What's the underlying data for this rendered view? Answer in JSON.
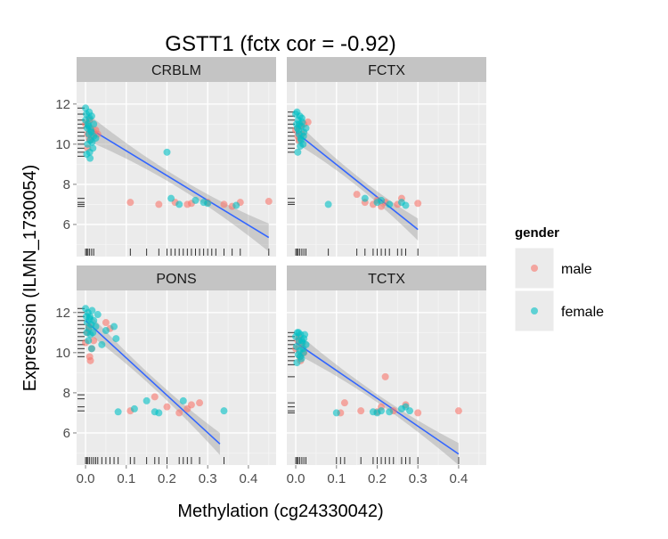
{
  "chart_data": {
    "type": "scatter",
    "title": "GSTT1 (fctx cor = -0.92)",
    "xlabel": "Methylation (cg24330042)",
    "ylabel": "Expression (ILMN_1730054)",
    "xticks": [
      0.0,
      0.1,
      0.2,
      0.3,
      0.4
    ],
    "xtick_labels": [
      "0.0",
      "0.1",
      "0.2",
      "0.3",
      "0.4"
    ],
    "yticks": [
      6,
      8,
      10,
      12
    ],
    "ytick_labels": [
      "6",
      "8",
      "10",
      "12"
    ],
    "xlim": [
      -0.022,
      0.468
    ],
    "ylim": [
      4.4,
      13.1
    ],
    "grid": true,
    "legend": {
      "title": "gender",
      "position": "right",
      "entries": [
        {
          "label": "male",
          "color": "#F8766D"
        },
        {
          "label": "female",
          "color": "#00BFC4"
        }
      ]
    },
    "colors": {
      "male": "#F8766D",
      "female": "#00BFC4",
      "fit_line": "#3366FF",
      "ribbon": "#999999",
      "panel_bg": "#EBEBEB",
      "strip_bg": "#C4C4C4"
    },
    "panels": [
      {
        "name": "CRBLM",
        "fit": {
          "x0": 0.0,
          "y0": 10.9,
          "x1": 0.45,
          "y1": 5.35
        },
        "ribbon_halfwidth": [
          0.25,
          0.7
        ],
        "male": {
          "x": [
            0.0,
            0.005,
            0.01,
            0.012,
            0.015,
            0.02,
            0.025,
            0.03,
            0.005,
            0.01,
            0.11,
            0.18,
            0.22,
            0.25,
            0.26,
            0.3,
            0.34,
            0.36,
            0.38,
            0.45
          ],
          "y": [
            11.0,
            10.5,
            10.2,
            10.8,
            10.4,
            10.6,
            10.7,
            10.5,
            9.8,
            11.2,
            7.1,
            7.0,
            7.1,
            7.0,
            7.05,
            7.1,
            7.0,
            6.9,
            7.1,
            7.15
          ]
        },
        "female": {
          "x": [
            0.0,
            0.0,
            0.002,
            0.004,
            0.005,
            0.006,
            0.008,
            0.01,
            0.01,
            0.012,
            0.014,
            0.015,
            0.018,
            0.02,
            0.02,
            0.025,
            0.003,
            0.007,
            0.011,
            0.016,
            0.009,
            0.013,
            0.2,
            0.21,
            0.23,
            0.27,
            0.29,
            0.3,
            0.37
          ],
          "y": [
            11.8,
            11.2,
            11.5,
            10.8,
            10.0,
            11.0,
            10.5,
            11.3,
            9.6,
            10.2,
            10.6,
            11.4,
            9.8,
            10.4,
            11.0,
            10.3,
            9.5,
            10.9,
            9.3,
            10.1,
            11.6,
            10.7,
            9.6,
            7.3,
            7.0,
            7.2,
            7.1,
            7.05,
            6.95
          ]
        },
        "rug_x": [
          0.0,
          0.003,
          0.006,
          0.01,
          0.015,
          0.02,
          0.11,
          0.15,
          0.18,
          0.2,
          0.21,
          0.22,
          0.23,
          0.24,
          0.25,
          0.26,
          0.27,
          0.28,
          0.29,
          0.3,
          0.31,
          0.32,
          0.34,
          0.36,
          0.38,
          0.45
        ],
        "rug_y": [
          11.8,
          11.5,
          11.2,
          11.0,
          10.8,
          10.6,
          10.4,
          10.2,
          10.0,
          9.8,
          9.6,
          9.4,
          7.3,
          7.1,
          7.0,
          6.9
        ]
      },
      {
        "name": "FCTX",
        "fit": {
          "x0": 0.0,
          "y0": 10.6,
          "x1": 0.3,
          "y1": 5.75
        },
        "ribbon_halfwidth": [
          0.25,
          0.55
        ],
        "male": {
          "x": [
            0.0,
            0.005,
            0.01,
            0.015,
            0.02,
            0.008,
            0.03,
            0.15,
            0.17,
            0.19,
            0.2,
            0.21,
            0.22,
            0.25,
            0.26,
            0.3
          ],
          "y": [
            10.7,
            10.4,
            10.9,
            10.5,
            11.0,
            10.2,
            11.1,
            7.5,
            7.1,
            7.0,
            7.2,
            6.9,
            7.1,
            7.0,
            7.3,
            7.05
          ]
        },
        "female": {
          "x": [
            0.0,
            0.002,
            0.004,
            0.006,
            0.008,
            0.01,
            0.012,
            0.014,
            0.016,
            0.018,
            0.02,
            0.003,
            0.007,
            0.011,
            0.015,
            0.019,
            0.025,
            0.005,
            0.009,
            0.013,
            0.08,
            0.17,
            0.2,
            0.21,
            0.23,
            0.26,
            0.27
          ],
          "y": [
            11.5,
            11.0,
            10.8,
            11.2,
            10.5,
            11.4,
            10.3,
            10.9,
            11.1,
            10.0,
            10.6,
            11.6,
            10.7,
            9.9,
            11.3,
            10.4,
            10.8,
            9.6,
            11.0,
            10.2,
            7.0,
            7.3,
            7.1,
            7.2,
            7.0,
            7.1,
            6.95
          ]
        },
        "rug_x": [
          0.0,
          0.003,
          0.006,
          0.01,
          0.015,
          0.02,
          0.025,
          0.08,
          0.15,
          0.17,
          0.19,
          0.2,
          0.21,
          0.22,
          0.23,
          0.25,
          0.26,
          0.27,
          0.3
        ],
        "rug_y": [
          11.6,
          11.4,
          11.2,
          11.0,
          10.8,
          10.6,
          10.4,
          10.2,
          10.0,
          9.8,
          9.6,
          7.3,
          7.1,
          7.0
        ]
      },
      {
        "name": "PONS",
        "fit": {
          "x0": 0.0,
          "y0": 11.6,
          "x1": 0.33,
          "y1": 5.45
        },
        "ribbon_halfwidth": [
          0.25,
          0.55
        ],
        "male": {
          "x": [
            0.0,
            0.005,
            0.01,
            0.015,
            0.02,
            0.008,
            0.012,
            0.05,
            0.06,
            0.11,
            0.17,
            0.2,
            0.23,
            0.25,
            0.26,
            0.28
          ],
          "y": [
            10.5,
            11.0,
            9.8,
            10.2,
            10.6,
            11.3,
            9.6,
            11.5,
            11.2,
            7.1,
            7.8,
            7.3,
            7.0,
            7.2,
            7.4,
            7.5
          ]
        },
        "female": {
          "x": [
            0.0,
            0.002,
            0.004,
            0.006,
            0.008,
            0.01,
            0.012,
            0.014,
            0.016,
            0.018,
            0.02,
            0.025,
            0.03,
            0.04,
            0.05,
            0.07,
            0.075,
            0.003,
            0.007,
            0.011,
            0.015,
            0.08,
            0.12,
            0.15,
            0.17,
            0.18,
            0.24,
            0.34
          ],
          "y": [
            12.2,
            11.8,
            11.5,
            12.0,
            11.2,
            11.7,
            10.9,
            11.4,
            12.1,
            11.0,
            11.6,
            11.3,
            11.9,
            10.4,
            11.1,
            11.3,
            10.7,
            11.0,
            10.6,
            11.8,
            10.2,
            7.05,
            7.2,
            7.6,
            7.05,
            7.0,
            7.6,
            7.1
          ]
        },
        "rug_x": [
          0.0,
          0.003,
          0.006,
          0.01,
          0.015,
          0.02,
          0.025,
          0.03,
          0.04,
          0.05,
          0.06,
          0.07,
          0.08,
          0.11,
          0.12,
          0.15,
          0.17,
          0.18,
          0.2,
          0.23,
          0.24,
          0.25,
          0.26,
          0.28,
          0.34
        ],
        "rug_y": [
          12.2,
          12.0,
          11.8,
          11.6,
          11.4,
          11.2,
          11.0,
          10.8,
          10.6,
          10.4,
          10.2,
          10.0,
          9.8,
          7.9,
          7.7,
          7.3,
          7.1
        ]
      },
      {
        "name": "TCTX",
        "fit": {
          "x0": 0.0,
          "y0": 10.5,
          "x1": 0.4,
          "y1": 4.95
        },
        "ribbon_halfwidth": [
          0.2,
          0.55
        ],
        "male": {
          "x": [
            0.0,
            0.005,
            0.01,
            0.015,
            0.02,
            0.008,
            0.012,
            0.11,
            0.12,
            0.16,
            0.2,
            0.21,
            0.22,
            0.24,
            0.27,
            0.3,
            0.4
          ],
          "y": [
            10.2,
            10.6,
            9.8,
            10.4,
            10.0,
            10.8,
            9.6,
            7.0,
            7.5,
            7.1,
            7.05,
            7.3,
            8.8,
            7.1,
            7.4,
            7.0,
            7.1
          ]
        },
        "female": {
          "x": [
            0.0,
            0.002,
            0.004,
            0.006,
            0.008,
            0.01,
            0.012,
            0.014,
            0.016,
            0.018,
            0.02,
            0.025,
            0.003,
            0.007,
            0.011,
            0.015,
            0.019,
            0.022,
            0.1,
            0.19,
            0.2,
            0.21,
            0.23,
            0.26,
            0.27,
            0.28
          ],
          "y": [
            10.8,
            10.3,
            11.0,
            9.9,
            10.6,
            10.1,
            10.9,
            9.7,
            10.5,
            10.2,
            10.7,
            10.4,
            9.5,
            11.0,
            9.8,
            10.6,
            10.0,
            10.9,
            7.0,
            7.05,
            7.0,
            7.1,
            7.05,
            7.2,
            7.3,
            7.1
          ]
        },
        "rug_x": [
          0.0,
          0.003,
          0.006,
          0.01,
          0.015,
          0.02,
          0.025,
          0.1,
          0.11,
          0.12,
          0.16,
          0.19,
          0.2,
          0.21,
          0.22,
          0.23,
          0.24,
          0.26,
          0.27,
          0.28,
          0.3,
          0.4
        ],
        "rug_y": [
          11.0,
          10.8,
          10.6,
          10.4,
          10.2,
          10.0,
          9.8,
          9.6,
          9.4,
          8.8,
          7.5,
          7.3,
          7.1,
          7.0
        ]
      }
    ]
  }
}
